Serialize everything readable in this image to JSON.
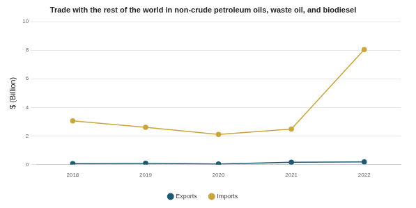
{
  "chart_data": {
    "type": "line",
    "title": "Trade with the rest of the world in non-crude petroleum oils, waste oil, and biodiesel",
    "y_label": "$ (Billion)",
    "categories": [
      "2018",
      "2019",
      "2020",
      "2021",
      "2022"
    ],
    "series": [
      {
        "name": "Exports",
        "color": "#1d5a72",
        "values": [
          0.05,
          0.08,
          0.03,
          0.15,
          0.18
        ]
      },
      {
        "name": "Imports",
        "color": "#c9a53e",
        "values": [
          3.05,
          2.6,
          2.1,
          2.48,
          8.05
        ]
      }
    ],
    "ylim": [
      0,
      10
    ],
    "yticks": [
      0,
      2,
      4,
      6,
      8,
      10
    ],
    "grid": true,
    "legend": "bottom",
    "marker": "circle",
    "line_style": "solid"
  }
}
